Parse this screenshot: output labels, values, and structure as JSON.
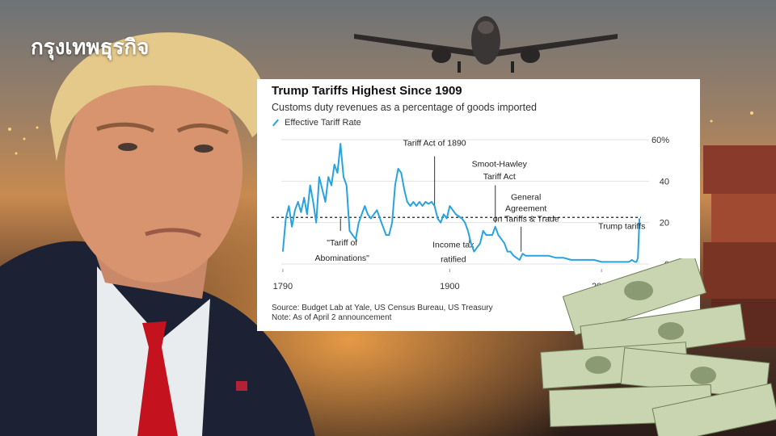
{
  "brand": {
    "logo_text": "กรุงเทพธุรกิจ"
  },
  "chart_card": {
    "title": "Trump Tariffs Highest Since 1909",
    "subtitle": "Customs duty revenues as a percentage of goods imported",
    "legend": "Effective Tariff Rate",
    "source": "Source: Budget Lab at Yale, US Census Bureau, US Treasury",
    "note": "Note: As of April 2 announcement"
  },
  "chart_data": {
    "type": "line",
    "title": "Trump Tariffs Highest Since 1909",
    "subtitle": "Customs duty revenues as a percentage of goods imported",
    "xlabel": "",
    "ylabel": "",
    "xlim": [
      1789,
      2026
    ],
    "ylim": [
      0,
      60
    ],
    "x_ticks": [
      1790,
      1900,
      2000
    ],
    "x_tick_labels": [
      "1790",
      "1900",
      "2000"
    ],
    "y_ticks": [
      0,
      20,
      40,
      60
    ],
    "y_tick_labels": [
      "0",
      "20",
      "40",
      "60%"
    ],
    "grid": true,
    "legend_position": "top-left",
    "series": [
      {
        "name": "Effective Tariff Rate",
        "color": "#29a3e0",
        "x": [
          1790,
          1792,
          1794,
          1796,
          1798,
          1800,
          1802,
          1804,
          1806,
          1808,
          1810,
          1812,
          1814,
          1816,
          1818,
          1820,
          1822,
          1824,
          1826,
          1828,
          1830,
          1832,
          1834,
          1836,
          1838,
          1840,
          1842,
          1844,
          1846,
          1848,
          1850,
          1852,
          1854,
          1856,
          1858,
          1860,
          1862,
          1864,
          1866,
          1868,
          1870,
          1872,
          1874,
          1876,
          1878,
          1880,
          1882,
          1884,
          1886,
          1888,
          1890,
          1892,
          1894,
          1896,
          1898,
          1900,
          1902,
          1904,
          1906,
          1908,
          1910,
          1912,
          1914,
          1916,
          1918,
          1920,
          1922,
          1924,
          1926,
          1928,
          1930,
          1932,
          1934,
          1936,
          1938,
          1940,
          1942,
          1944,
          1946,
          1948,
          1950,
          1955,
          1960,
          1965,
          1970,
          1975,
          1980,
          1985,
          1990,
          1995,
          2000,
          2005,
          2010,
          2015,
          2018,
          2020,
          2022,
          2023,
          2024,
          2025
        ],
        "y": [
          6,
          22,
          28,
          18,
          26,
          30,
          25,
          32,
          24,
          38,
          30,
          20,
          42,
          36,
          30,
          42,
          38,
          48,
          44,
          58,
          42,
          38,
          16,
          14,
          12,
          20,
          24,
          28,
          24,
          22,
          24,
          26,
          22,
          18,
          14,
          14,
          20,
          38,
          46,
          44,
          36,
          30,
          28,
          30,
          28,
          30,
          28,
          30,
          29,
          30,
          28,
          22,
          20,
          24,
          22,
          28,
          26,
          24,
          23,
          22,
          20,
          16,
          10,
          6,
          8,
          10,
          16,
          14,
          14,
          14,
          18,
          14,
          12,
          10,
          6,
          6,
          4,
          3,
          2,
          5,
          4,
          4,
          4,
          4,
          3,
          3,
          2,
          2,
          2,
          2,
          1,
          1,
          1,
          1,
          1,
          2,
          1,
          1,
          3,
          22
        ]
      }
    ],
    "reference_line": {
      "label": "Trump tariffs",
      "value": 22.5,
      "style": "dashed"
    },
    "annotations": [
      {
        "label": "\"Tariff of Abominations\"",
        "x": 1828
      },
      {
        "label": "Tariff Act of 1890",
        "x": 1890
      },
      {
        "label": "Income tax ratified",
        "x": 1913
      },
      {
        "label": "Smoot-Hawley Tariff Act",
        "x": 1930
      },
      {
        "label": "General Agreement on Tariffs & Trade",
        "x": 1947
      }
    ]
  }
}
